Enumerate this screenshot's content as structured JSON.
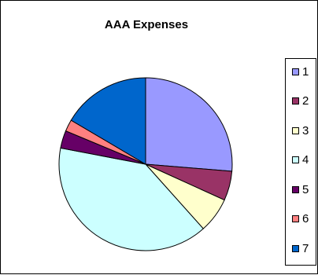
{
  "chart_data": {
    "type": "pie",
    "title": "AAA Expenses",
    "categories": [
      "1",
      "2",
      "3",
      "4",
      "5",
      "6",
      "7"
    ],
    "values": [
      26.3,
      5.5,
      6.6,
      39.6,
      3.3,
      2.2,
      16.5
    ],
    "colors": [
      "#9999FF",
      "#993366",
      "#FFFFCC",
      "#CCFFFF",
      "#660066",
      "#FF8080",
      "#0066CC"
    ],
    "legend_position": "right",
    "start_angle": "top, clockwise"
  }
}
